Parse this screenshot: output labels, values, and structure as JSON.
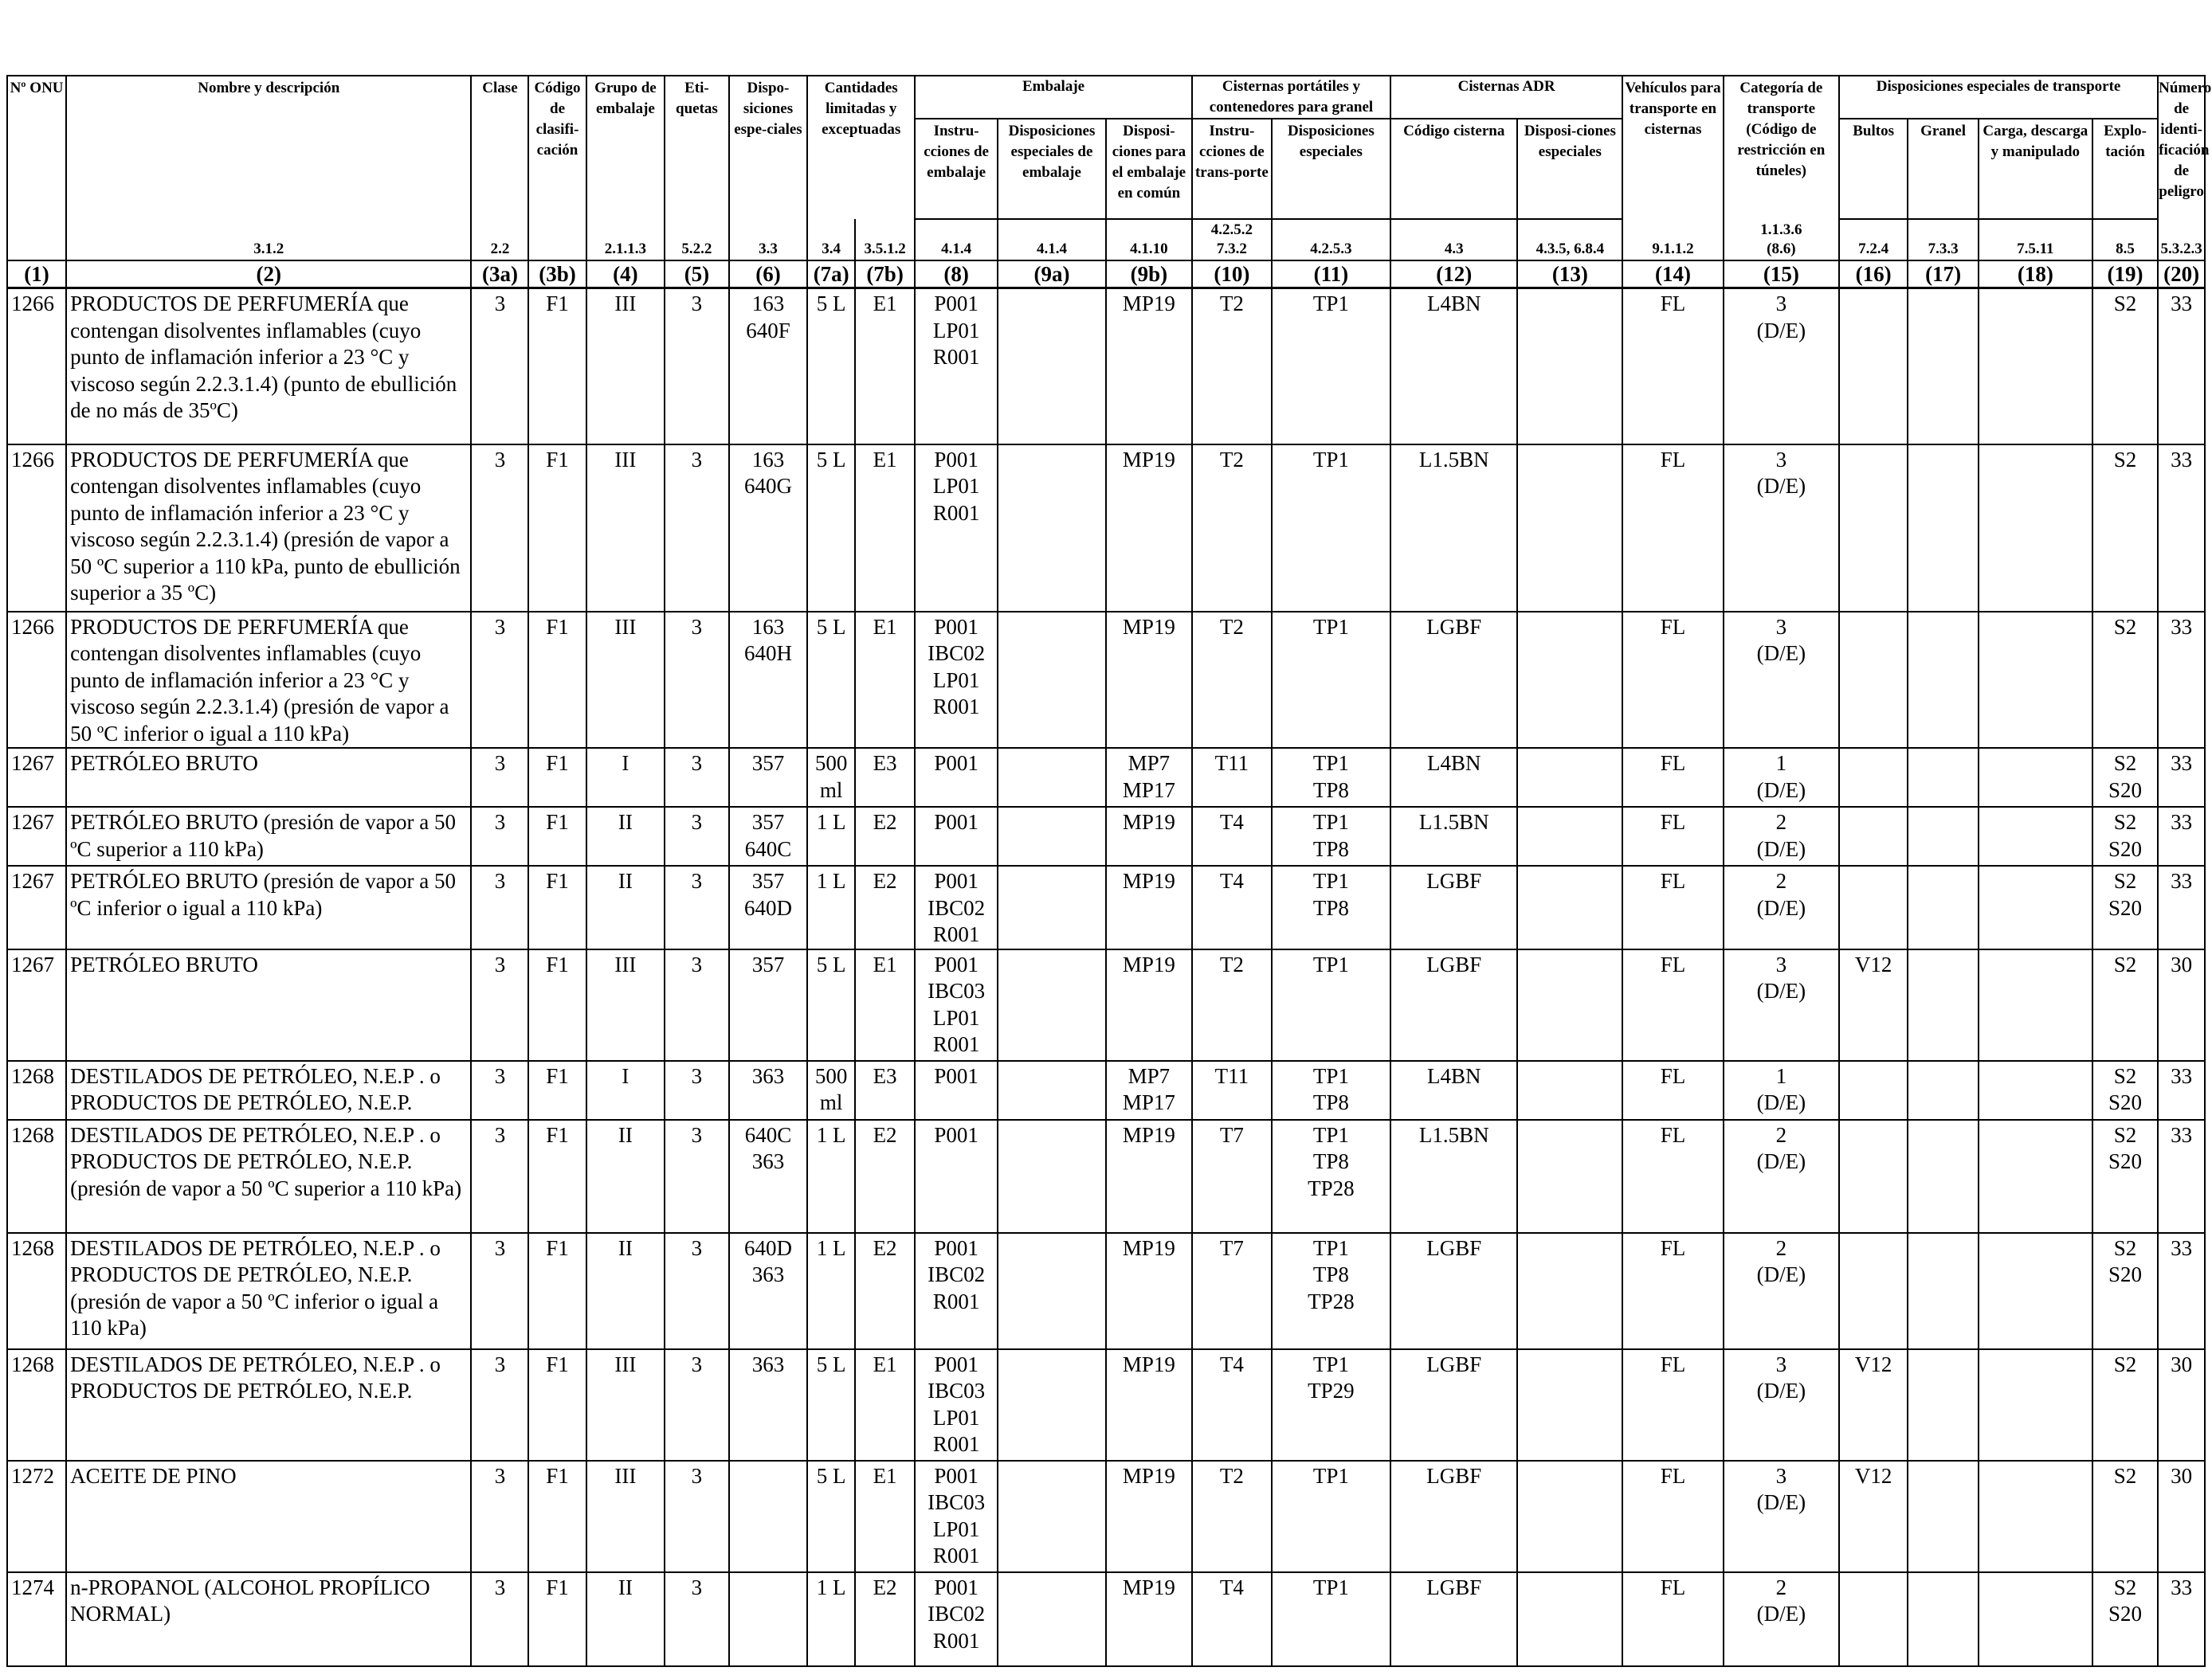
{
  "headers": {
    "onu": "Nº ONU",
    "nombre": "Nombre y descripción",
    "clase": "Clase",
    "codigo": "Código de clasifi-cación",
    "grupo": "Grupo de embalaje",
    "etiquetas": "Eti-quetas",
    "disposiciones": "Dispo-siciones espe-ciales",
    "cantidades": "Cantidades limitadas y exceptuadas",
    "embalaje": "Embalaje",
    "embalaje_instr": "Instru-cciones de embalaje",
    "embalaje_disp": "Disposiciones especiales de embalaje",
    "embalaje_comun": "Disposi-ciones para el embalaje en común",
    "cisternas_port": "Cisternas portátiles y contenedores para granel",
    "cisternas_instr": "Instru-cciones de trans-porte",
    "cisternas_disp": "Disposiciones especiales",
    "cisternas_adr": "Cisternas ADR",
    "adr_codigo": "Código cisterna",
    "adr_disp": "Disposi-ciones especiales",
    "vehiculos": "Vehículos para transporte en cisternas",
    "categoria": "Categoría de transporte (Código de restricción en túneles)",
    "disp_transporte": "Disposiciones especiales de transporte",
    "bultos": "Bultos",
    "granel": "Granel",
    "carga": "Carga, descarga y manipulado",
    "explotacion": "Explo-tación",
    "numero_peligro": "Número de identi-ficación de peligro"
  },
  "refs": {
    "nombre": "3.1.2",
    "clase": "2.2",
    "grupo": "2.1.1.3",
    "etiquetas": "5.2.2",
    "disposiciones": "3.3",
    "cant_a": "3.4",
    "cant_b": "3.5.1.2",
    "emb_instr": "4.1.4",
    "emb_disp": "4.1.4",
    "emb_comun": "4.1.10",
    "cist_instr": "4.2.5.2",
    "cist_instr2": "7.3.2",
    "cist_disp": "4.2.5.3",
    "adr_codigo": "4.3",
    "adr_disp": "4.3.5, 6.8.4",
    "vehiculos": "9.1.1.2",
    "categoria": "1.1.3.6",
    "categoria2": "(8.6)",
    "bultos": "7.2.4",
    "granel": "7.3.3",
    "carga": "7.5.11",
    "explotacion": "8.5",
    "peligro": "5.3.2.3"
  },
  "colnums": [
    "(1)",
    "(2)",
    "(3a)",
    "(3b)",
    "(4)",
    "(5)",
    "(6)",
    "(7a)",
    "(7b)",
    "(8)",
    "(9a)",
    "(9b)",
    "(10)",
    "(11)",
    "(12)",
    "(13)",
    "(14)",
    "(15)",
    "(16)",
    "(17)",
    "(18)",
    "(19)",
    "(20)"
  ],
  "rows": [
    {
      "onu": "1266",
      "nombre": [
        "PRODUCTOS DE PERFUMERÍA que",
        "contengan disolventes inflamables (cuyo",
        "punto de inflamación inferior a 23 °C y",
        "viscoso según 2.2.3.1.4) (punto de ebullición",
        "de no más de 35ºC)"
      ],
      "clase": "3",
      "codigo": "F1",
      "grupo": "III",
      "etiquetas": "3",
      "disp": [
        "163",
        "640F"
      ],
      "cant_a": "5 L",
      "cant_b": "E1",
      "emb_instr": [
        "P001",
        "LP01",
        "R001"
      ],
      "emb_disp": [],
      "emb_comun": [
        "MP19"
      ],
      "cist_instr": [
        "T2"
      ],
      "cist_disp": [
        "TP1"
      ],
      "adr_codigo": "L4BN",
      "adr_disp": "",
      "vehiculos": "FL",
      "categoria": [
        "3",
        "(D/E)"
      ],
      "bultos": "",
      "granel": "",
      "carga": "",
      "explotacion": [
        "S2"
      ],
      "peligro": "33"
    },
    {
      "onu": "1266",
      "nombre": [
        "PRODUCTOS DE PERFUMERÍA que",
        "contengan disolventes inflamables (cuyo",
        "punto de inflamación inferior a 23 °C y",
        "viscoso según 2.2.3.1.4) (presión de vapor a",
        "50 ºC superior a 110 kPa, punto de ebullición",
        "superior a 35 ºC)"
      ],
      "clase": "3",
      "codigo": "F1",
      "grupo": "III",
      "etiquetas": "3",
      "disp": [
        "163",
        "640G"
      ],
      "cant_a": "5 L",
      "cant_b": "E1",
      "emb_instr": [
        "P001",
        "LP01",
        "R001"
      ],
      "emb_disp": [],
      "emb_comun": [
        "MP19"
      ],
      "cist_instr": [
        "T2"
      ],
      "cist_disp": [
        "TP1"
      ],
      "adr_codigo": "L1.5BN",
      "adr_disp": "",
      "vehiculos": "FL",
      "categoria": [
        "3",
        "(D/E)"
      ],
      "bultos": "",
      "granel": "",
      "carga": "",
      "explotacion": [
        "S2"
      ],
      "peligro": "33"
    },
    {
      "onu": "1266",
      "nombre": [
        "PRODUCTOS DE PERFUMERÍA que",
        "contengan disolventes inflamables (cuyo",
        "punto de inflamación inferior a 23 °C y",
        "viscoso según 2.2.3.1.4) (presión de vapor a",
        "50 ºC inferior o igual a 110 kPa)"
      ],
      "clase": "3",
      "codigo": "F1",
      "grupo": "III",
      "etiquetas": "3",
      "disp": [
        "163",
        "640H"
      ],
      "cant_a": "5 L",
      "cant_b": "E1",
      "emb_instr": [
        "P001",
        "IBC02",
        "LP01",
        "R001"
      ],
      "emb_disp": [],
      "emb_comun": [
        "MP19"
      ],
      "cist_instr": [
        "T2"
      ],
      "cist_disp": [
        "TP1"
      ],
      "adr_codigo": "LGBF",
      "adr_disp": "",
      "vehiculos": "FL",
      "categoria": [
        "3",
        "(D/E)"
      ],
      "bultos": "",
      "granel": "",
      "carga": "",
      "explotacion": [
        "S2"
      ],
      "peligro": "33"
    },
    {
      "onu": "1267",
      "nombre": [
        "PETRÓLEO BRUTO"
      ],
      "clase": "3",
      "codigo": "F1",
      "grupo": "I",
      "etiquetas": "3",
      "disp": [
        "357"
      ],
      "cant_a": "500 ml",
      "cant_b": "E3",
      "emb_instr": [
        "P001"
      ],
      "emb_disp": [],
      "emb_comun": [
        "MP7",
        "MP17"
      ],
      "cist_instr": [
        "T11"
      ],
      "cist_disp": [
        "TP1",
        "TP8"
      ],
      "adr_codigo": "L4BN",
      "adr_disp": "",
      "vehiculos": "FL",
      "categoria": [
        "1",
        "(D/E)"
      ],
      "bultos": "",
      "granel": "",
      "carga": "",
      "explotacion": [
        "S2",
        "S20"
      ],
      "peligro": "33"
    },
    {
      "onu": "1267",
      "nombre": [
        "PETRÓLEO BRUTO (presión de vapor a 50",
        "ºC superior a 110 kPa)"
      ],
      "clase": "3",
      "codigo": "F1",
      "grupo": "II",
      "etiquetas": "3",
      "disp": [
        "357",
        "640C"
      ],
      "cant_a": "1 L",
      "cant_b": "E2",
      "emb_instr": [
        "P001"
      ],
      "emb_disp": [],
      "emb_comun": [
        "MP19"
      ],
      "cist_instr": [
        "T4"
      ],
      "cist_disp": [
        "TP1",
        "TP8"
      ],
      "adr_codigo": "L1.5BN",
      "adr_disp": "",
      "vehiculos": "FL",
      "categoria": [
        "2",
        "(D/E)"
      ],
      "bultos": "",
      "granel": "",
      "carga": "",
      "explotacion": [
        "S2",
        "S20"
      ],
      "peligro": "33"
    },
    {
      "onu": "1267",
      "nombre": [
        "PETRÓLEO BRUTO (presión de vapor a 50",
        "ºC inferior o igual a 110 kPa)"
      ],
      "clase": "3",
      "codigo": "F1",
      "grupo": "II",
      "etiquetas": "3",
      "disp": [
        "357",
        "640D"
      ],
      "cant_a": "1 L",
      "cant_b": "E2",
      "emb_instr": [
        "P001",
        "IBC02",
        "R001"
      ],
      "emb_disp": [],
      "emb_comun": [
        "MP19"
      ],
      "cist_instr": [
        "T4"
      ],
      "cist_disp": [
        "TP1",
        "TP8"
      ],
      "adr_codigo": "LGBF",
      "adr_disp": "",
      "vehiculos": "FL",
      "categoria": [
        "2",
        "(D/E)"
      ],
      "bultos": "",
      "granel": "",
      "carga": "",
      "explotacion": [
        "S2",
        "S20"
      ],
      "peligro": "33"
    },
    {
      "onu": "1267",
      "nombre": [
        "PETRÓLEO BRUTO"
      ],
      "clase": "3",
      "codigo": "F1",
      "grupo": "III",
      "etiquetas": "3",
      "disp": [
        "357"
      ],
      "cant_a": "5 L",
      "cant_b": "E1",
      "emb_instr": [
        "P001",
        "IBC03",
        "LP01",
        "R001"
      ],
      "emb_disp": [],
      "emb_comun": [
        "MP19"
      ],
      "cist_instr": [
        "T2"
      ],
      "cist_disp": [
        "TP1"
      ],
      "adr_codigo": "LGBF",
      "adr_disp": "",
      "vehiculos": "FL",
      "categoria": [
        "3",
        "(D/E)"
      ],
      "bultos": "V12",
      "granel": "",
      "carga": "",
      "explotacion": [
        "S2"
      ],
      "peligro": "30"
    },
    {
      "onu": "1268",
      "nombre": [
        "DESTILADOS DE PETRÓLEO, N.E.P . o",
        "PRODUCTOS DE PETRÓLEO, N.E.P."
      ],
      "clase": "3",
      "codigo": "F1",
      "grupo": "I",
      "etiquetas": "3",
      "disp": [
        "363"
      ],
      "cant_a": "500 ml",
      "cant_b": "E3",
      "emb_instr": [
        "P001"
      ],
      "emb_disp": [],
      "emb_comun": [
        "MP7",
        "MP17"
      ],
      "cist_instr": [
        "T11"
      ],
      "cist_disp": [
        "TP1",
        "TP8"
      ],
      "adr_codigo": "L4BN",
      "adr_disp": "",
      "vehiculos": "FL",
      "categoria": [
        "1",
        "(D/E)"
      ],
      "bultos": "",
      "granel": "",
      "carga": "",
      "explotacion": [
        "S2",
        "S20"
      ],
      "peligro": "33"
    },
    {
      "onu": "1268",
      "nombre": [
        "DESTILADOS DE PETRÓLEO, N.E.P . o",
        "PRODUCTOS DE PETRÓLEO, N.E.P.",
        "(presión de vapor a 50 ºC superior a 110 kPa)"
      ],
      "clase": "3",
      "codigo": "F1",
      "grupo": "II",
      "etiquetas": "3",
      "disp": [
        "640C",
        "363"
      ],
      "cant_a": "1 L",
      "cant_b": "E2",
      "emb_instr": [
        "P001"
      ],
      "emb_disp": [],
      "emb_comun": [
        "MP19"
      ],
      "cist_instr": [
        "T7"
      ],
      "cist_disp": [
        "TP1",
        "TP8",
        "TP28"
      ],
      "adr_codigo": "L1.5BN",
      "adr_disp": "",
      "vehiculos": "FL",
      "categoria": [
        "2",
        "(D/E)"
      ],
      "bultos": "",
      "granel": "",
      "carga": "",
      "explotacion": [
        "S2",
        "S20"
      ],
      "peligro": "33"
    },
    {
      "onu": "1268",
      "nombre": [
        "DESTILADOS DE PETRÓLEO, N.E.P . o",
        "PRODUCTOS DE PETRÓLEO, N.E.P.",
        "(presión de vapor a 50 ºC inferior o igual a",
        "110 kPa)"
      ],
      "clase": "3",
      "codigo": "F1",
      "grupo": "II",
      "etiquetas": "3",
      "disp": [
        "640D",
        "363"
      ],
      "cant_a": "1 L",
      "cant_b": "E2",
      "emb_instr": [
        "P001",
        "IBC02",
        "R001"
      ],
      "emb_disp": [],
      "emb_comun": [
        "MP19"
      ],
      "cist_instr": [
        "T7"
      ],
      "cist_disp": [
        "TP1",
        "TP8",
        "TP28"
      ],
      "adr_codigo": "LGBF",
      "adr_disp": "",
      "vehiculos": "FL",
      "categoria": [
        "2",
        "(D/E)"
      ],
      "bultos": "",
      "granel": "",
      "carga": "",
      "explotacion": [
        "S2",
        "S20"
      ],
      "peligro": "33"
    },
    {
      "onu": "1268",
      "nombre": [
        "DESTILADOS DE PETRÓLEO, N.E.P . o",
        "PRODUCTOS DE PETRÓLEO, N.E.P."
      ],
      "clase": "3",
      "codigo": "F1",
      "grupo": "III",
      "etiquetas": "3",
      "disp": [
        "363"
      ],
      "cant_a": "5 L",
      "cant_b": "E1",
      "emb_instr": [
        "P001",
        "IBC03",
        "LP01",
        "R001"
      ],
      "emb_disp": [],
      "emb_comun": [
        "MP19"
      ],
      "cist_instr": [
        "T4"
      ],
      "cist_disp": [
        "TP1",
        "TP29"
      ],
      "adr_codigo": "LGBF",
      "adr_disp": "",
      "vehiculos": "FL",
      "categoria": [
        "3",
        "(D/E)"
      ],
      "bultos": "V12",
      "granel": "",
      "carga": "",
      "explotacion": [
        "S2"
      ],
      "peligro": "30"
    },
    {
      "onu": "1272",
      "nombre": [
        "ACEITE DE PINO"
      ],
      "clase": "3",
      "codigo": "F1",
      "grupo": "III",
      "etiquetas": "3",
      "disp": [],
      "cant_a": "5 L",
      "cant_b": "E1",
      "emb_instr": [
        "P001",
        "IBC03",
        "LP01",
        "R001"
      ],
      "emb_disp": [],
      "emb_comun": [
        "MP19"
      ],
      "cist_instr": [
        "T2"
      ],
      "cist_disp": [
        "TP1"
      ],
      "adr_codigo": "LGBF",
      "adr_disp": "",
      "vehiculos": "FL",
      "categoria": [
        "3",
        "(D/E)"
      ],
      "bultos": "V12",
      "granel": "",
      "carga": "",
      "explotacion": [
        "S2"
      ],
      "peligro": "30"
    },
    {
      "onu": "1274",
      "nombre": [
        "n-PROPANOL (ALCOHOL PROPÍLICO",
        "NORMAL)"
      ],
      "clase": "3",
      "codigo": "F1",
      "grupo": "II",
      "etiquetas": "3",
      "disp": [],
      "cant_a": "1 L",
      "cant_b": "E2",
      "emb_instr": [
        "P001",
        "IBC02",
        "R001"
      ],
      "emb_disp": [],
      "emb_comun": [
        "MP19"
      ],
      "cist_instr": [
        "T4"
      ],
      "cist_disp": [
        "TP1"
      ],
      "adr_codigo": "LGBF",
      "adr_disp": "",
      "vehiculos": "FL",
      "categoria": [
        "2",
        "(D/E)"
      ],
      "bultos": "",
      "granel": "",
      "carga": "",
      "explotacion": [
        "S2",
        "S20"
      ],
      "peligro": "33"
    }
  ]
}
